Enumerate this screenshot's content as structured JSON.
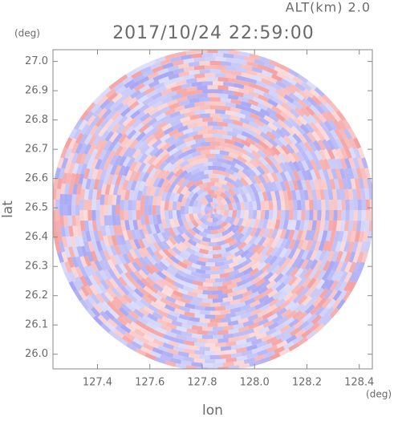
{
  "chart_data": {
    "type": "ppi",
    "title": "2017/10/24 22:59:00",
    "subtitle": "ALT(km) 2.0",
    "x_label": "lon",
    "y_label": "lat",
    "x_unit": "(deg)",
    "y_unit": "(deg)",
    "xlim": [
      127.23,
      128.45
    ],
    "ylim": [
      25.95,
      27.04
    ],
    "xticks": [
      127.4,
      127.6,
      127.8,
      {
        "value": 128.0,
        "label": "128.0"
      },
      128.2,
      128.4
    ],
    "yticks": [
      {
        "value": 26.0,
        "label": "26.0"
      },
      26.1,
      26.2,
      26.3,
      26.4,
      26.5,
      26.6,
      26.7,
      26.8,
      26.9,
      {
        "value": 27.0,
        "label": "27.0"
      }
    ]
  }
}
